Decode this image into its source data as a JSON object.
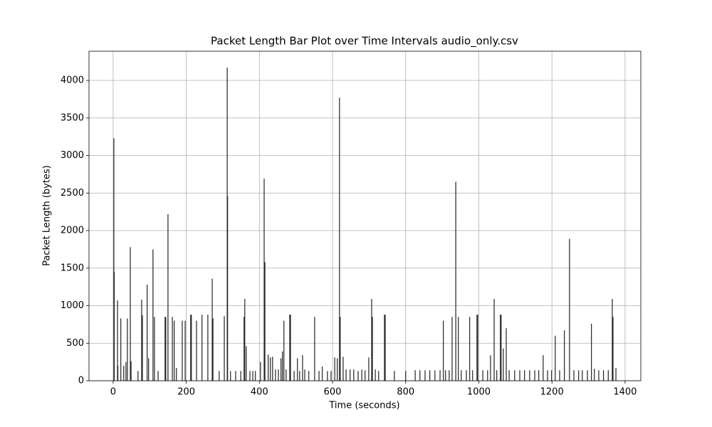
{
  "chart_data": {
    "type": "bar",
    "title": "Packet Length Bar Plot over Time Intervals audio_only.csv",
    "xlabel": "Time (seconds)",
    "ylabel": "Packet Length (bytes)",
    "x": [
      2,
      3,
      12,
      13,
      21,
      29,
      35,
      39,
      47,
      49,
      68,
      78,
      80,
      93,
      97,
      109,
      113,
      123,
      142,
      144,
      150,
      162,
      167,
      173,
      189,
      197,
      212,
      214,
      228,
      243,
      259,
      271,
      273,
      290,
      304,
      312,
      313,
      321,
      335,
      349,
      358,
      360,
      364,
      374,
      382,
      389,
      403,
      413,
      415,
      424,
      430,
      436,
      444,
      452,
      459,
      463,
      467,
      473,
      483,
      485,
      495,
      504,
      510,
      518,
      524,
      535,
      551,
      563,
      572,
      586,
      596,
      606,
      613,
      619,
      621,
      629,
      637,
      648,
      658,
      670,
      680,
      689,
      699,
      707,
      709,
      717,
      726,
      742,
      744,
      769,
      800,
      826,
      839,
      853,
      866,
      880,
      894,
      903,
      909,
      919,
      927,
      937,
      944,
      952,
      966,
      975,
      983,
      995,
      997,
      1011,
      1024,
      1032,
      1042,
      1049,
      1059,
      1061,
      1067,
      1075,
      1083,
      1098,
      1112,
      1125,
      1139,
      1153,
      1164,
      1176,
      1188,
      1199,
      1209,
      1221,
      1234,
      1248,
      1260,
      1273,
      1283,
      1297,
      1308,
      1316,
      1328,
      1341,
      1354,
      1365,
      1367,
      1375
    ],
    "values": [
      3230,
      1450,
      1070,
      200,
      830,
      200,
      250,
      830,
      1780,
      260,
      130,
      1080,
      870,
      1280,
      300,
      1750,
      850,
      130,
      850,
      850,
      2220,
      850,
      800,
      170,
      800,
      800,
      880,
      880,
      800,
      880,
      880,
      1360,
      830,
      130,
      860,
      4170,
      2460,
      130,
      130,
      130,
      850,
      1090,
      460,
      130,
      130,
      130,
      250,
      2690,
      1580,
      350,
      310,
      320,
      150,
      150,
      300,
      390,
      800,
      150,
      880,
      880,
      130,
      300,
      130,
      340,
      150,
      130,
      850,
      130,
      190,
      130,
      130,
      310,
      300,
      3770,
      850,
      320,
      150,
      150,
      150,
      130,
      150,
      140,
      310,
      1090,
      850,
      150,
      130,
      880,
      880,
      130,
      130,
      140,
      140,
      140,
      140,
      140,
      140,
      800,
      140,
      140,
      850,
      2650,
      850,
      140,
      140,
      850,
      140,
      880,
      880,
      140,
      140,
      340,
      1090,
      140,
      880,
      880,
      430,
      700,
      140,
      140,
      140,
      140,
      140,
      140,
      140,
      340,
      140,
      140,
      600,
      140,
      670,
      1890,
      140,
      140,
      140,
      140,
      760,
      160,
      140,
      140,
      140,
      1090,
      850,
      170
    ],
    "color": "#222222",
    "xlim": [
      -66,
      1443
    ],
    "xticks": [
      0,
      200,
      400,
      600,
      800,
      1000,
      1200,
      1400
    ],
    "ylim": [
      0,
      4389
    ],
    "yticks": [
      0,
      500,
      1000,
      1500,
      2000,
      2500,
      3000,
      3500,
      4000
    ],
    "grid": true
  }
}
